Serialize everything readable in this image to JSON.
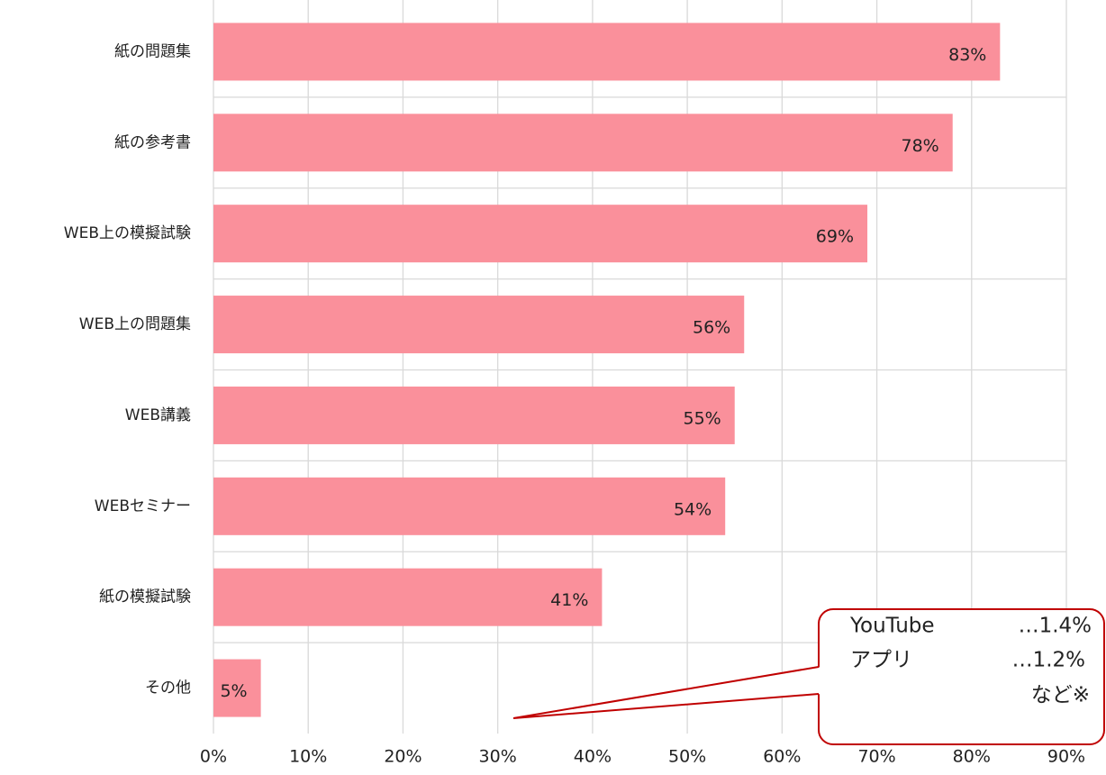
{
  "chart_data": {
    "type": "bar",
    "orientation": "horizontal",
    "categories": [
      "紙の問題集",
      "紙の参考書",
      "WEB上の模擬試験",
      "WEB上の問題集",
      "WEB講義",
      "WEBセミナー",
      "紙の模擬試験",
      "その他"
    ],
    "values": [
      83,
      78,
      69,
      56,
      55,
      54,
      41,
      5
    ],
    "value_labels": [
      "83%",
      "78%",
      "69%",
      "56%",
      "55%",
      "54%",
      "41%",
      "5%"
    ],
    "color": "#fa909b",
    "xlim": [
      0,
      90
    ],
    "xticks": [
      {
        "value": 0,
        "label": "0%"
      },
      {
        "value": 10,
        "label": "10%"
      },
      {
        "value": 20,
        "label": "20%"
      },
      {
        "value": 30,
        "label": "30%"
      },
      {
        "value": 40,
        "label": "40%"
      },
      {
        "value": 50,
        "label": "50%"
      },
      {
        "value": 60,
        "label": "60%"
      },
      {
        "value": 70,
        "label": "70%"
      },
      {
        "value": 80,
        "label": "80%"
      },
      {
        "value": 90,
        "label": "90%"
      }
    ],
    "grid": true,
    "annotation": {
      "items": [
        {
          "name": "YouTube",
          "value": "…1.4%"
        },
        {
          "name": "アプリ",
          "value": "…1.2%"
        }
      ],
      "note": "など※"
    }
  }
}
